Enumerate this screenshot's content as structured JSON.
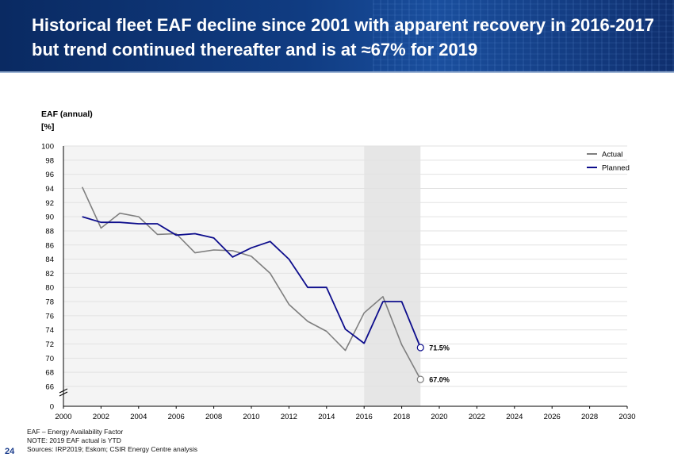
{
  "header": {
    "title": "Historical fleet EAF decline since 2001 with apparent recovery in 2016-2017 but trend continued thereafter and is at ≈67% for 2019"
  },
  "chart_data": {
    "type": "line",
    "ylabel_line1": "EAF (annual)",
    "ylabel_line2": "[%]",
    "xlim": [
      2000,
      2030
    ],
    "ylim": [
      66,
      100
    ],
    "y_axis_break": true,
    "x_ticks": [
      "2000",
      "2002",
      "2004",
      "2006",
      "2008",
      "2010",
      "2012",
      "2014",
      "2016",
      "2018",
      "2020",
      "2022",
      "2024",
      "2026",
      "2028",
      "2030"
    ],
    "y_ticks": [
      "0",
      "66",
      "68",
      "70",
      "72",
      "74",
      "76",
      "78",
      "80",
      "82",
      "84",
      "86",
      "88",
      "90",
      "92",
      "94",
      "96",
      "98",
      "100"
    ],
    "shaded_periods": [
      {
        "from": 2000,
        "to": 2016,
        "color": "#f4f4f4"
      },
      {
        "from": 2016,
        "to": 2019,
        "color": "#e6e6e6"
      }
    ],
    "grid": "horizontal",
    "legend_position": "top-right",
    "series": [
      {
        "name": "Actual",
        "color": "#7f7f7f",
        "x": [
          2001,
          2002,
          2003,
          2004,
          2005,
          2006,
          2007,
          2008,
          2009,
          2010,
          2011,
          2012,
          2013,
          2014,
          2015,
          2016,
          2017,
          2018,
          2019
        ],
        "y": [
          94.2,
          88.4,
          90.5,
          90.0,
          87.5,
          87.6,
          84.9,
          85.3,
          85.2,
          84.4,
          82.0,
          77.6,
          75.2,
          73.8,
          71.1,
          76.4,
          78.7,
          71.9,
          67.0
        ]
      },
      {
        "name": "Planned",
        "color": "#0d0d8c",
        "x": [
          2001,
          2002,
          2003,
          2004,
          2005,
          2006,
          2007,
          2008,
          2009,
          2010,
          2011,
          2012,
          2013,
          2014,
          2015,
          2016,
          2017,
          2018,
          2019
        ],
        "y": [
          90.0,
          89.2,
          89.2,
          89.0,
          89.0,
          87.4,
          87.6,
          87.0,
          84.3,
          85.6,
          86.5,
          84.0,
          80.0,
          80.0,
          74.1,
          72.1,
          78.0,
          78.0,
          71.5
        ]
      }
    ],
    "annotations": [
      {
        "x": 2019,
        "y": 71.5,
        "label": "71.5%"
      },
      {
        "x": 2019,
        "y": 67.0,
        "label": "67.0%"
      }
    ]
  },
  "footnotes": [
    "EAF – Energy Availability Factor",
    "NOTE: 2019 EAF actual is YTD",
    "Sources: IRP2019; Eskom; CSIR Energy Centre analysis"
  ],
  "page_number": "24"
}
